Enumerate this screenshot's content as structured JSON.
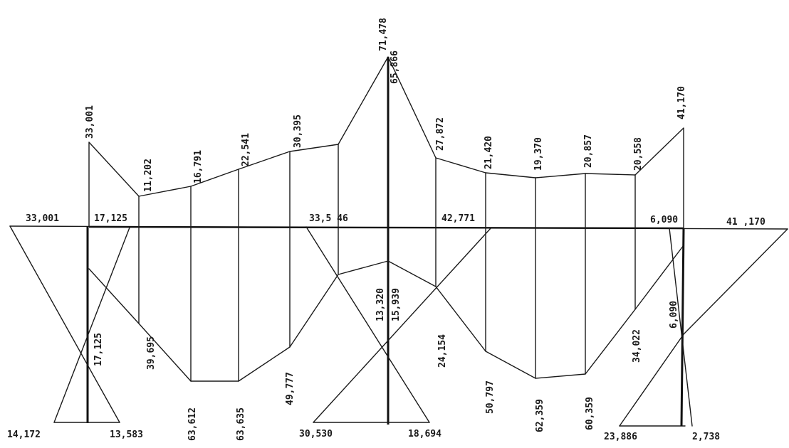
{
  "labels": {
    "t1": "33,001",
    "t2": "11,202",
    "t3": "16,791",
    "t4": "22,541",
    "t5": "30,395",
    "t6": "71,478",
    "t7": "65,866",
    "t8": "27,872",
    "t9": "21,420",
    "t10": "19,370",
    "t11": "20,857",
    "t12": "20,558",
    "t13": "41,170",
    "a1": "33,001",
    "a2": "17,125",
    "a3": "33,5 46",
    "a4": "42,771",
    "a5": "6,090",
    "a6": "41 ,170",
    "m1": "17,125",
    "m2": "39,695",
    "m3": "13,320",
    "m4": "15,939",
    "m5": "24,154",
    "m6": "34,022",
    "m7": "6,090",
    "b1": "14,172",
    "b2": "13,583",
    "b3": "63,612",
    "b4": "63,635",
    "b5": "49,777",
    "b6": "30,530",
    "b7": "18,694",
    "b8": "50,797",
    "b9": "62,359",
    "b10": "60,359",
    "b11": "23,886",
    "b12": "2,738"
  }
}
